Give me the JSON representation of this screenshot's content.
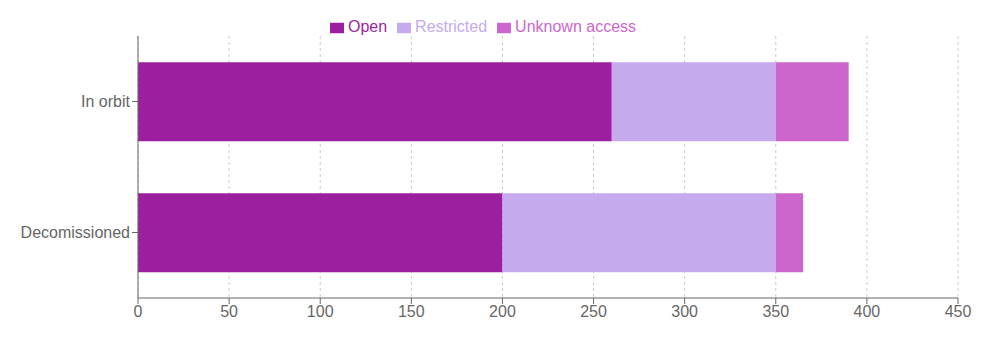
{
  "chart_data": {
    "type": "bar",
    "orientation": "horizontal",
    "stacked": true,
    "categories": [
      "In orbit",
      "Decomissioned"
    ],
    "series": [
      {
        "name": "Open",
        "color": "#9B1F9E",
        "values": [
          260,
          200
        ]
      },
      {
        "name": "Restricted",
        "color": "#C5AAEE",
        "values": [
          90,
          150
        ]
      },
      {
        "name": "Unknown access",
        "color": "#CC66CC",
        "values": [
          40,
          15
        ]
      }
    ],
    "xlim": [
      0,
      450
    ],
    "xticks": [
      0,
      50,
      100,
      150,
      200,
      250,
      300,
      350,
      400,
      450
    ],
    "grid": true,
    "legend": "top"
  }
}
